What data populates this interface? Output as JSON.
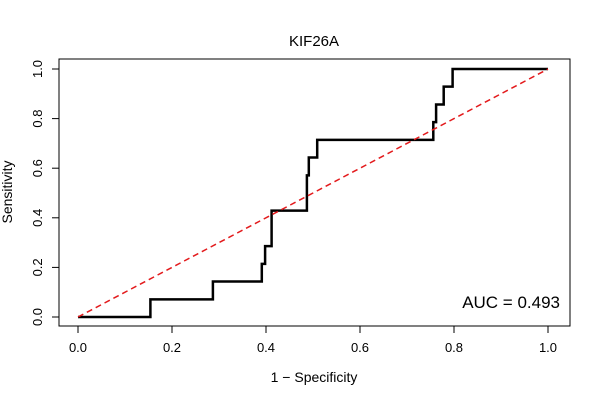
{
  "chart_data": {
    "type": "line",
    "title": "KIF26A",
    "xlabel": "1 − Specificity",
    "ylabel": "Sensitivity",
    "xlim": [
      0,
      1
    ],
    "ylim": [
      0,
      1
    ],
    "x_ticks": [
      "0.0",
      "0.2",
      "0.4",
      "0.6",
      "0.8",
      "1.0"
    ],
    "y_ticks": [
      "0.0",
      "0.2",
      "0.4",
      "0.6",
      "0.8",
      "1.0"
    ],
    "annotation": "AUC = 0.493",
    "grid": false,
    "series": [
      {
        "style": "step",
        "color": "#000000",
        "x": [
          0.0,
          0.154,
          0.154,
          0.287,
          0.287,
          0.391,
          0.391,
          0.398,
          0.398,
          0.412,
          0.412,
          0.487,
          0.487,
          0.491,
          0.491,
          0.509,
          0.509,
          0.756,
          0.756,
          0.762,
          0.762,
          0.778,
          0.778,
          0.797,
          0.797,
          1.0
        ],
        "y": [
          0.0,
          0.0,
          0.071,
          0.071,
          0.143,
          0.143,
          0.214,
          0.214,
          0.286,
          0.286,
          0.429,
          0.429,
          0.571,
          0.571,
          0.643,
          0.643,
          0.714,
          0.714,
          0.786,
          0.786,
          0.857,
          0.857,
          0.929,
          0.929,
          1.0,
          1.0
        ]
      },
      {
        "style": "dashed",
        "color": "#e31a1c",
        "x": [
          0,
          1
        ],
        "y": [
          0,
          1
        ]
      }
    ]
  }
}
